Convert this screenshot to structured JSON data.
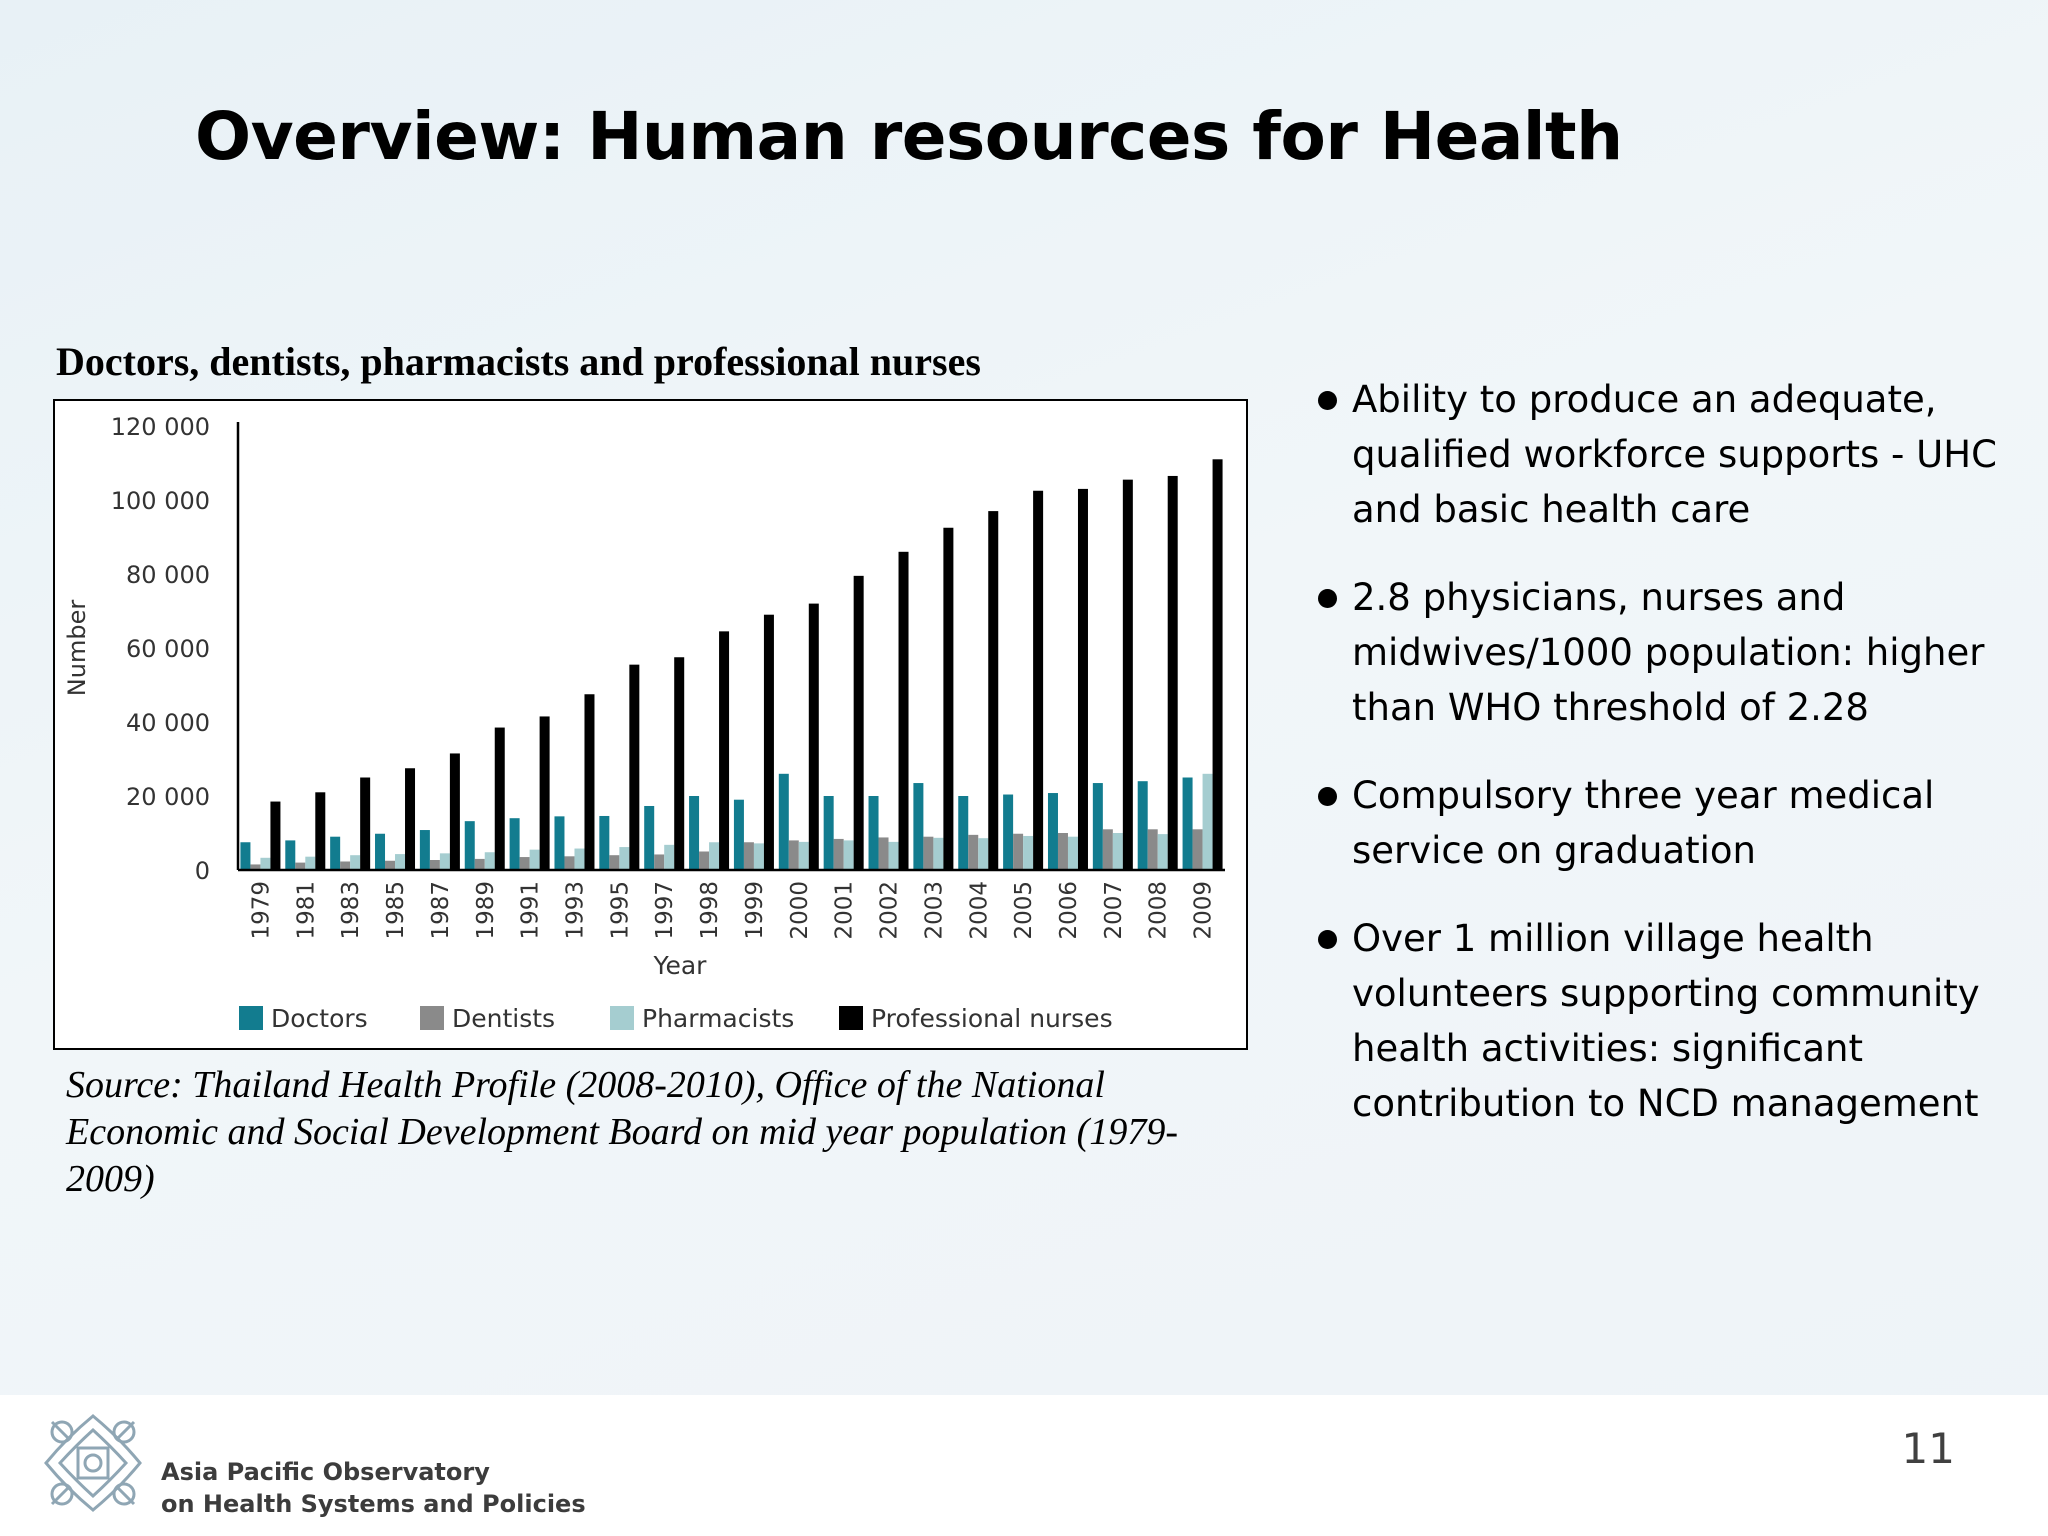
{
  "slide": {
    "title": "Overview: Human resources for Health",
    "page_number": "11"
  },
  "chart_heading": "Doctors, dentists, pharmacists and professional nurses",
  "source": "Source: Thailand Health Profile (2008-2010), Office of the National Economic and Social Development Board on mid year population (1979-2009)",
  "bullets": [
    "Ability to produce an adequate, qualified workforce supports - UHC and basic health care",
    "2.8 physicians, nurses and midwives/1000 population: higher than WHO threshold of 2.28",
    "Compulsory three year medical service on graduation",
    "Over 1 million village health volunteers supporting community health activities: significant contribution to NCD management"
  ],
  "footer": {
    "org_line1": "Asia Pacific Observatory",
    "org_line2": "on Health Systems and Policies"
  },
  "colors": {
    "doctors": "#127c8f",
    "dentists": "#8a8a8a",
    "pharmacists": "#a5cdd0",
    "nurses": "#000000"
  },
  "chart_data": {
    "type": "bar",
    "title": "Doctors, dentists, pharmacists and professional nurses",
    "xlabel": "Year",
    "ylabel": "Number",
    "ylim": [
      0,
      120000
    ],
    "yticks": [
      "0",
      "20 000",
      "40 000",
      "60 000",
      "80 000",
      "100 000",
      "120 000"
    ],
    "ytick_values": [
      0,
      20000,
      40000,
      60000,
      80000,
      100000,
      120000
    ],
    "legend_position": "bottom",
    "grid": false,
    "categories": [
      "1979",
      "1981",
      "1983",
      "1985",
      "1987",
      "1989",
      "1991",
      "1993",
      "1995",
      "1997",
      "1998",
      "1999",
      "2000",
      "2001",
      "2002",
      "2003",
      "2004",
      "2005",
      "2006",
      "2007",
      "2008",
      "2009"
    ],
    "series": [
      {
        "name": "Doctors",
        "color": "#127c8f",
        "values": [
          7500,
          8000,
          9000,
          9800,
          10800,
          13200,
          14000,
          14500,
          14600,
          17300,
          20000,
          19000,
          26000,
          20000,
          20000,
          23500,
          20000,
          20400,
          20800,
          23500,
          24000,
          25000
        ]
      },
      {
        "name": "Dentists",
        "color": "#8a8a8a",
        "values": [
          1500,
          2000,
          2300,
          2500,
          2700,
          3000,
          3500,
          3700,
          4000,
          4200,
          5000,
          7500,
          8000,
          8400,
          8800,
          9000,
          9500,
          9800,
          10000,
          11000,
          11000,
          11000
        ]
      },
      {
        "name": "Pharmacists",
        "color": "#a5cdd0",
        "values": [
          3300,
          3600,
          4000,
          4300,
          4500,
          4800,
          5500,
          5800,
          6200,
          6800,
          7500,
          7200,
          7600,
          8000,
          7600,
          8700,
          8600,
          9200,
          9000,
          10000,
          9700,
          26000
        ]
      },
      {
        "name": "Professional nurses",
        "color": "#000000",
        "values": [
          18500,
          21000,
          25000,
          27500,
          31500,
          38500,
          41500,
          47500,
          55500,
          57500,
          64500,
          69000,
          72000,
          79500,
          86000,
          92500,
          97000,
          102500,
          103000,
          105500,
          106500,
          111000
        ]
      }
    ]
  }
}
